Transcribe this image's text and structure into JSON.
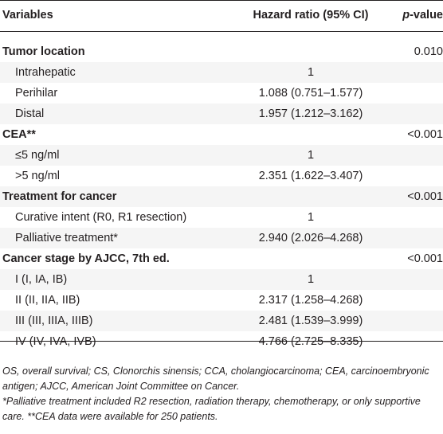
{
  "table": {
    "headers": {
      "variables": "Variables",
      "hazard_ratio": "Hazard ratio (95% CI)",
      "p_prefix": "p",
      "p_suffix": "-value"
    },
    "rows": [
      {
        "label": "Tumor location",
        "hr": "",
        "p": "0.010",
        "type": "group"
      },
      {
        "label": "Intrahepatic",
        "hr": "1",
        "p": "",
        "type": "sub"
      },
      {
        "label": "Perihilar",
        "hr": "1.088 (0.751–1.577)",
        "p": "",
        "type": "sub"
      },
      {
        "label": "Distal",
        "hr": "1.957 (1.212–3.162)",
        "p": "",
        "type": "sub"
      },
      {
        "label": "CEA**",
        "hr": "",
        "p": "<0.001",
        "type": "group"
      },
      {
        "label": "≤5 ng/ml",
        "hr": "1",
        "p": "",
        "type": "sub"
      },
      {
        "label": ">5 ng/ml",
        "hr": "2.351 (1.622–3.407)",
        "p": "",
        "type": "sub"
      },
      {
        "label": "Treatment for cancer",
        "hr": "",
        "p": "<0.001",
        "type": "group"
      },
      {
        "label": "Curative intent (R0, R1 resection)",
        "hr": "1",
        "p": "",
        "type": "sub"
      },
      {
        "label": "Palliative treatment*",
        "hr": "2.940 (2.026–4.268)",
        "p": "",
        "type": "sub"
      },
      {
        "label": "Cancer stage by AJCC, 7th ed.",
        "hr": "",
        "p": "<0.001",
        "type": "group"
      },
      {
        "label": "I (I, IA, IB)",
        "hr": "1",
        "p": "",
        "type": "sub"
      },
      {
        "label": "II (II, IIA, IIB)",
        "hr": "2.317 (1.258–4.268)",
        "p": "",
        "type": "sub"
      },
      {
        "label": "III (III, IIIA, IIIB)",
        "hr": "2.481 (1.539–3.999)",
        "p": "",
        "type": "sub"
      },
      {
        "label": "IV (IV, IVA, IVB)",
        "hr": "4.766 (2.725–8.335)",
        "p": "",
        "type": "sub"
      }
    ]
  },
  "footnotes": {
    "abbreviations": "OS, overall survival; CS, Clonorchis sinensis; CCA, cholangiocarcinoma; CEA, carcinoembryonic antigen; AJCC, American Joint Committee on Cancer.",
    "note": "*Palliative treatment included R2 resection, radiation therapy, chemotherapy, or only supportive care. **CEA data were available for 250 patients."
  }
}
